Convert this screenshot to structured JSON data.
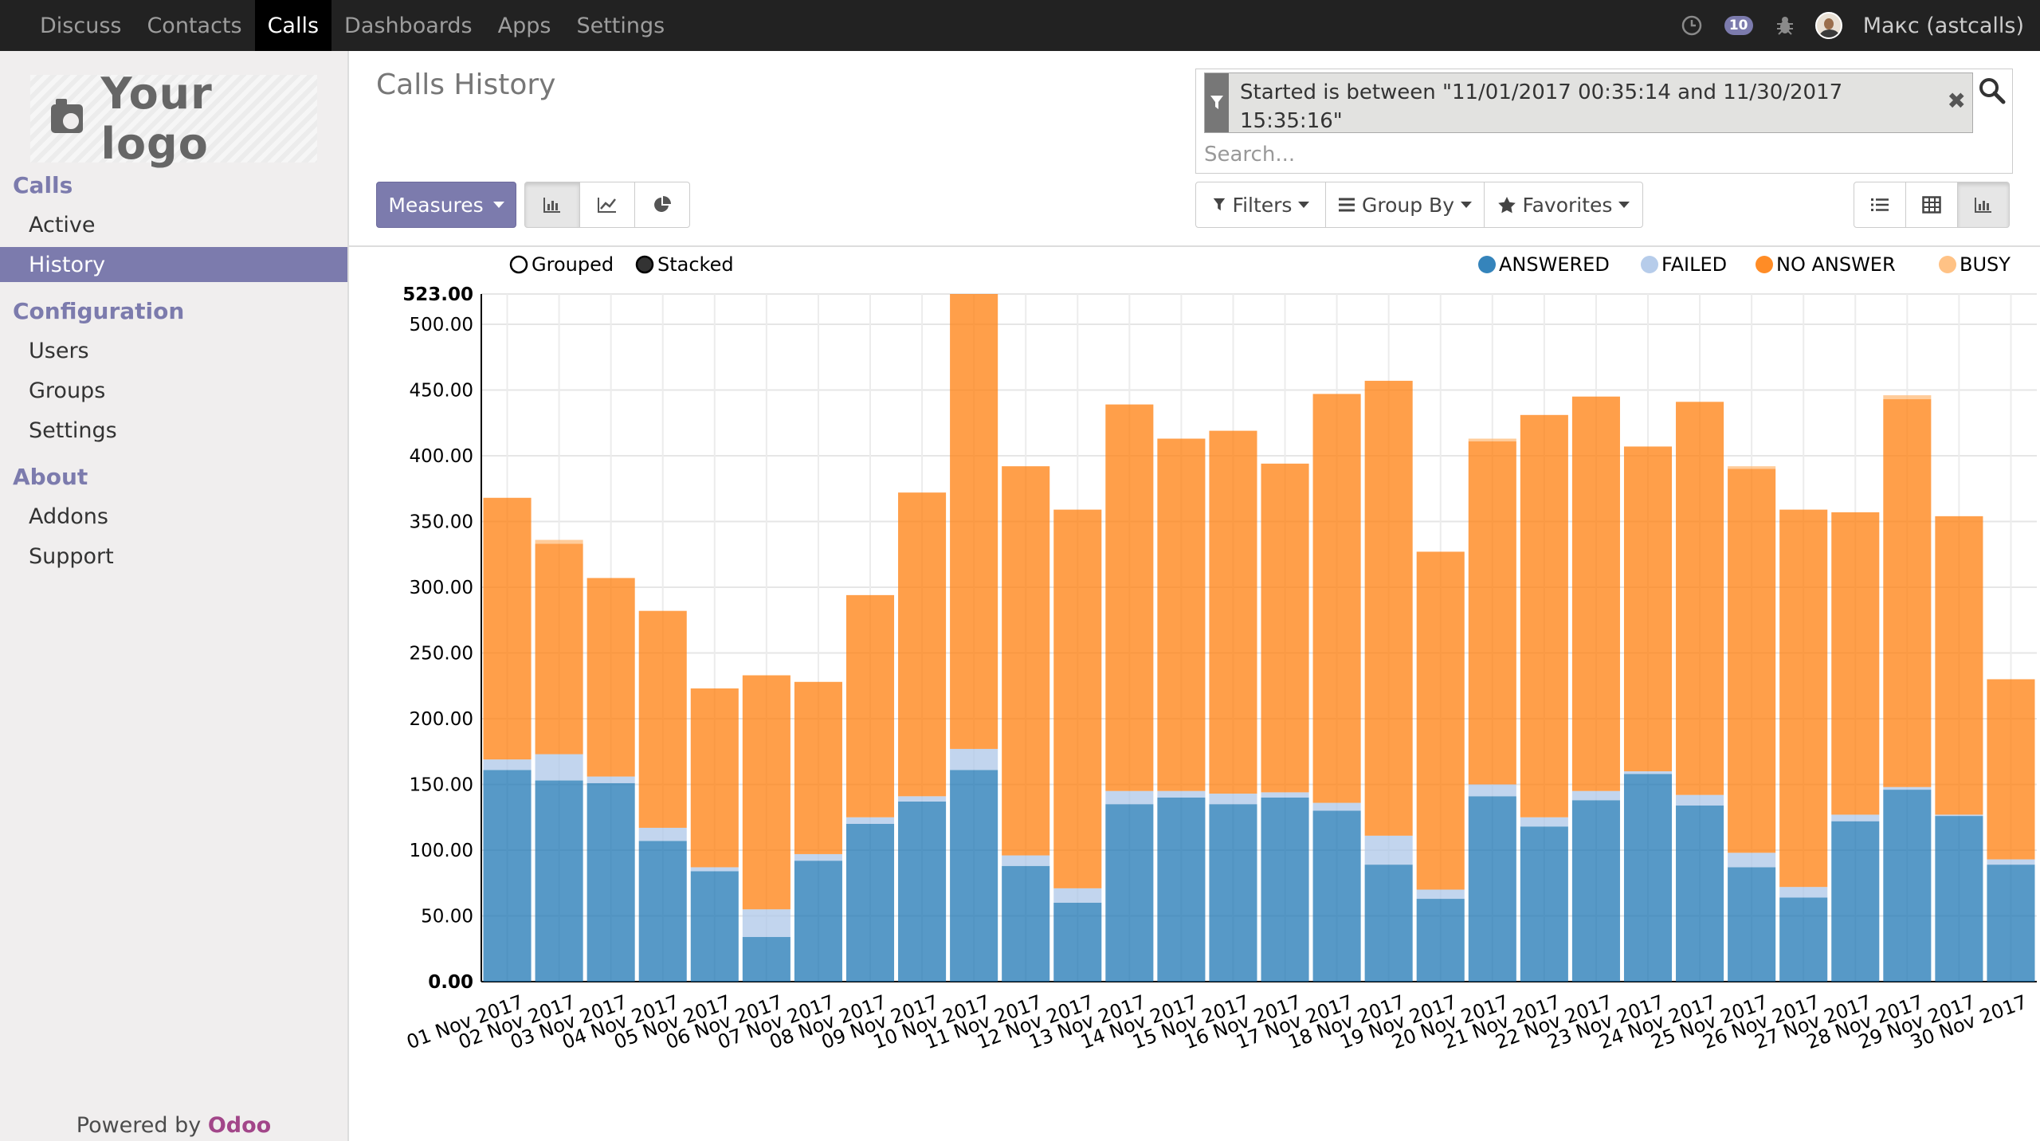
{
  "topbar": {
    "menus": [
      "Discuss",
      "Contacts",
      "Calls",
      "Dashboards",
      "Apps",
      "Settings"
    ],
    "active_menu": "Calls",
    "messages_count": "10",
    "user": "Макс (astcalls)"
  },
  "sidebar": {
    "logo_text": "Your logo",
    "sections": [
      {
        "title": "Calls",
        "items": [
          "Active",
          "History"
        ]
      },
      {
        "title": "Configuration",
        "items": [
          "Users",
          "Groups",
          "Settings"
        ]
      },
      {
        "title": "About",
        "items": [
          "Addons",
          "Support"
        ]
      }
    ],
    "active_item": "History",
    "powered_prefix": "Powered by",
    "powered_brand": "Odoo"
  },
  "control_panel": {
    "title": "Calls History",
    "measures_label": "Measures",
    "filters_label": "Filters",
    "groupby_label": "Group By",
    "favorites_label": "Favorites",
    "facet_text": "Started is between \"11/01/2017 00:35:14 and 11/30/2017 15:35:16\"",
    "search_placeholder": "Search..."
  },
  "colors": {
    "accent": "#7c7bad",
    "answered": "#1f77b4",
    "failed": "#aec7e8",
    "no_answer": "#ff7f0e",
    "busy": "#ffbb78"
  },
  "chart_data": {
    "type": "bar",
    "stacked": true,
    "mode_labels": {
      "grouped": "Grouped",
      "stacked": "Stacked"
    },
    "selected_mode": "stacked",
    "legend_position": "top-right",
    "grid": true,
    "ylim": [
      0,
      523
    ],
    "y_ticks": [
      "0.00",
      "50.00",
      "100.00",
      "150.00",
      "200.00",
      "250.00",
      "300.00",
      "350.00",
      "400.00",
      "450.00",
      "500.00",
      "523.00"
    ],
    "categories": [
      "01 Nov 2017",
      "02 Nov 2017",
      "03 Nov 2017",
      "04 Nov 2017",
      "05 Nov 2017",
      "06 Nov 2017",
      "07 Nov 2017",
      "08 Nov 2017",
      "09 Nov 2017",
      "10 Nov 2017",
      "11 Nov 2017",
      "12 Nov 2017",
      "13 Nov 2017",
      "14 Nov 2017",
      "15 Nov 2017",
      "16 Nov 2017",
      "17 Nov 2017",
      "18 Nov 2017",
      "19 Nov 2017",
      "20 Nov 2017",
      "21 Nov 2017",
      "22 Nov 2017",
      "23 Nov 2017",
      "24 Nov 2017",
      "25 Nov 2017",
      "26 Nov 2017",
      "27 Nov 2017",
      "28 Nov 2017",
      "29 Nov 2017",
      "30 Nov 2017"
    ],
    "series": [
      {
        "name": "ANSWERED",
        "values": [
          161,
          153,
          151,
          107,
          84,
          34,
          92,
          120,
          137,
          161,
          88,
          60,
          135,
          140,
          135,
          140,
          130,
          89,
          63,
          141,
          118,
          138,
          158,
          134,
          87,
          64,
          122,
          146,
          126,
          89
        ]
      },
      {
        "name": "FAILED",
        "values": [
          8,
          20,
          5,
          10,
          3,
          21,
          5,
          5,
          4,
          16,
          8,
          11,
          10,
          5,
          8,
          4,
          6,
          22,
          7,
          9,
          7,
          7,
          2,
          8,
          11,
          8,
          5,
          2,
          1,
          4
        ]
      },
      {
        "name": "NO ANSWER",
        "values": [
          199,
          160,
          151,
          165,
          136,
          178,
          131,
          169,
          231,
          346,
          296,
          288,
          294,
          268,
          276,
          250,
          311,
          346,
          257,
          261,
          306,
          300,
          247,
          299,
          292,
          287,
          230,
          295,
          227,
          137
        ]
      },
      {
        "name": "BUSY",
        "values": [
          0,
          3,
          0,
          0,
          0,
          0,
          0,
          0,
          0,
          0,
          0,
          0,
          0,
          0,
          0,
          0,
          0,
          0,
          0,
          2,
          0,
          0,
          0,
          0,
          2,
          0,
          0,
          3,
          0,
          0
        ]
      }
    ]
  }
}
